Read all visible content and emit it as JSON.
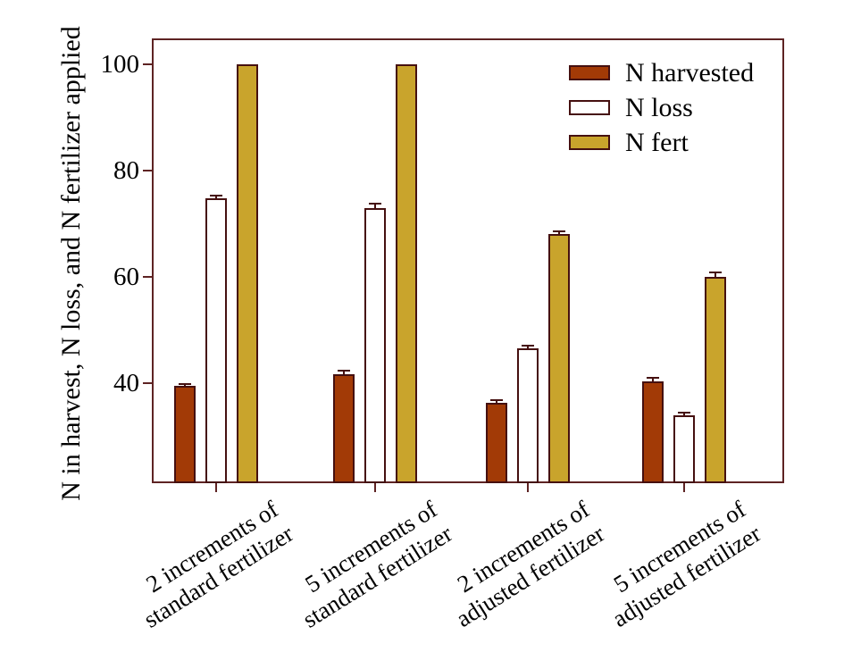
{
  "chart_data": {
    "type": "bar",
    "title": "",
    "xlabel": "",
    "ylabel": "N in harvest, N loss, and N fertilizer applied",
    "categories": [
      {
        "line1": "2 increments of",
        "line2": "standard fertilizer"
      },
      {
        "line1": "5 increments of",
        "line2": "standard fertilizer"
      },
      {
        "line1": "2 increments of",
        "line2": "adjusted fertilizer"
      },
      {
        "line1": "5 increments of",
        "line2": "adjusted fertilizer"
      }
    ],
    "series": [
      {
        "name": "N harvested",
        "color": "#a23a06",
        "values": [
          39.5,
          41.7,
          36.3,
          40.4
        ],
        "errors": [
          0.4,
          0.7,
          0.5,
          0.6
        ]
      },
      {
        "name": "N loss",
        "color": "#ffffff",
        "values": [
          74.8,
          72.9,
          46.6,
          33.9
        ],
        "errors": [
          0.5,
          0.9,
          0.4,
          0.6
        ]
      },
      {
        "name": "N fert",
        "color": "#c9a42c",
        "values": [
          100,
          100,
          68.1,
          60.0
        ],
        "errors": [
          0,
          0,
          0.5,
          0.9
        ]
      }
    ],
    "yticks": [
      40,
      60,
      80,
      100
    ],
    "ylim": [
      21.2,
      104.9
    ],
    "legend_position": "top-right",
    "grid": false,
    "colors": {
      "frame": "#5e2323",
      "tick": "#5e2323",
      "bar_border": "#451010",
      "error_bar": "#451010",
      "text": "#000000"
    }
  }
}
